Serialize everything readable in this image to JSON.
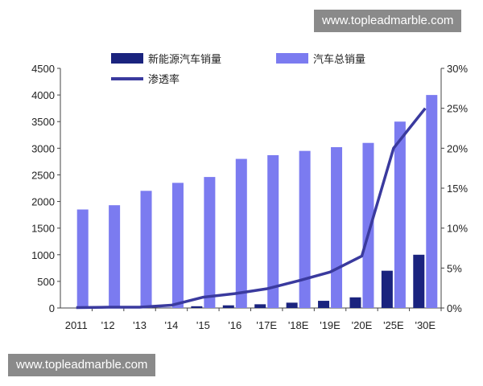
{
  "watermark_top": "www.topleadmarble.com",
  "watermark_bottom": "www.topleadmarble.com",
  "chart_data": {
    "type": "bar",
    "categories": [
      "2011",
      "'12",
      "'13",
      "'14",
      "'15",
      "'16",
      "'17E",
      "'18E",
      "'19E",
      "'20E",
      "'25E",
      "'30E"
    ],
    "series": [
      {
        "name": "新能源汽车销量",
        "type": "bar",
        "axis": "left",
        "color": "#1a237e",
        "values": [
          1,
          2,
          2,
          8,
          33,
          50,
          70,
          100,
          135,
          200,
          700,
          1000
        ]
      },
      {
        "name": "汽车总销量",
        "type": "bar",
        "axis": "left",
        "color": "#7b7bf0",
        "values": [
          1850,
          1930,
          2200,
          2350,
          2460,
          2800,
          2870,
          2950,
          3020,
          3100,
          3500,
          4000
        ]
      },
      {
        "name": "渗透率",
        "type": "line",
        "axis": "right",
        "unit": "%",
        "color": "#3a3a9e",
        "values": [
          0.05,
          0.1,
          0.1,
          0.35,
          1.35,
          1.8,
          2.4,
          3.4,
          4.5,
          6.5,
          20.0,
          25.0
        ]
      }
    ],
    "y_left": {
      "ylim": [
        0,
        4500
      ],
      "ticks": [
        "0",
        "500",
        "1000",
        "1500",
        "2000",
        "2500",
        "3000",
        "3500",
        "4000",
        "4500"
      ]
    },
    "y_right": {
      "ylim": [
        0,
        30
      ],
      "ticks": [
        "0%",
        "5%",
        "10%",
        "15%",
        "20%",
        "25%",
        "30%"
      ]
    },
    "legend_position": "top",
    "grid": false
  }
}
